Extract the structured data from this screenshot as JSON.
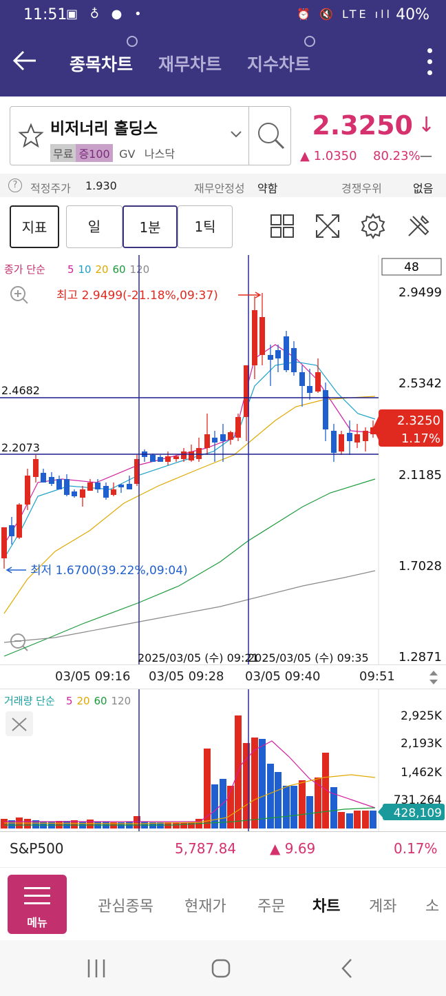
{
  "status": {
    "time": "11:51",
    "left_icons": "▣ ♁ ● •",
    "right_icons": "⏰ 🔇 LTE ıll",
    "battery": "40%"
  },
  "header": {
    "tabs": [
      {
        "label": "종목차트",
        "active": true
      },
      {
        "label": "재무차트",
        "active": false
      },
      {
        "label": "지수차트",
        "active": false
      }
    ]
  },
  "stock": {
    "name": "비저너리 홀딩스",
    "tags": [
      "무료",
      "증100",
      "GV",
      "나스닥"
    ],
    "price": "2.3250",
    "price_arrow": "↓",
    "change": "▲ 1.0350",
    "change_pct": "80.23%",
    "dash": "—"
  },
  "info": {
    "fair_label": "적정주가",
    "fair_value": "1.930",
    "stability_label": "재무안정성",
    "stability_value": "약함",
    "competition_label": "경쟁우위",
    "competition_value": "없음"
  },
  "toolbar": {
    "indicator": "지표",
    "day": "일",
    "minute": "1분",
    "tick": "1틱"
  },
  "chart": {
    "legend_prefix": "종가 단순",
    "ma_labels": [
      {
        "text": "5",
        "color": "#d21fa0"
      },
      {
        "text": "10",
        "color": "#1ca0c8"
      },
      {
        "text": "20",
        "color": "#e0a800"
      },
      {
        "text": "60",
        "color": "#1a9a3a"
      },
      {
        "text": "120",
        "color": "#888888"
      }
    ],
    "count_box": "48",
    "high_label": "최고 2.9499(-21.18%,09:37)",
    "low_label": "최저 1.6700(39.22%,09:04)",
    "hline1": "2.4682",
    "hline2": "2.2073",
    "price_ticks": [
      "2.9499",
      "2.5342",
      "2.1185",
      "1.7028",
      "1.2871"
    ],
    "current_price": "2.3250",
    "current_pct": "1.17%",
    "crosshair_time_1": "2025/03/05 (수) 09:21",
    "crosshair_time_2": "2025/03/05 (수) 09:35",
    "time_ticks": [
      "03/05 09:16",
      "03/05 09:28",
      "03/05 09:40",
      "09:51"
    ]
  },
  "volume": {
    "legend_prefix": "거래량 단순",
    "ma_labels": [
      {
        "text": "5",
        "color": "#d21fa0"
      },
      {
        "text": "20",
        "color": "#e0a800"
      },
      {
        "text": "60",
        "color": "#1a9a3a"
      },
      {
        "text": "120",
        "color": "#888888"
      }
    ],
    "ticks": [
      "2,925K",
      "2,193K",
      "1,462K",
      "731,264"
    ],
    "current": "428,109"
  },
  "index_row": {
    "name": "S&P500",
    "value": "5,787.84",
    "change": "▲ 9.69",
    "pct": "0.17%"
  },
  "nav": {
    "menu_label": "메뉴",
    "items": [
      {
        "label": "관심종목",
        "active": false
      },
      {
        "label": "현재가",
        "active": false
      },
      {
        "label": "주문",
        "active": false
      },
      {
        "label": "차트",
        "active": true
      },
      {
        "label": "계좌",
        "active": false
      },
      {
        "label": "소",
        "active": false
      }
    ]
  },
  "colors": {
    "brand": "#3b3580",
    "up": "#e0291f",
    "down": "#1f5fcf",
    "accent": "#d5316e"
  }
}
